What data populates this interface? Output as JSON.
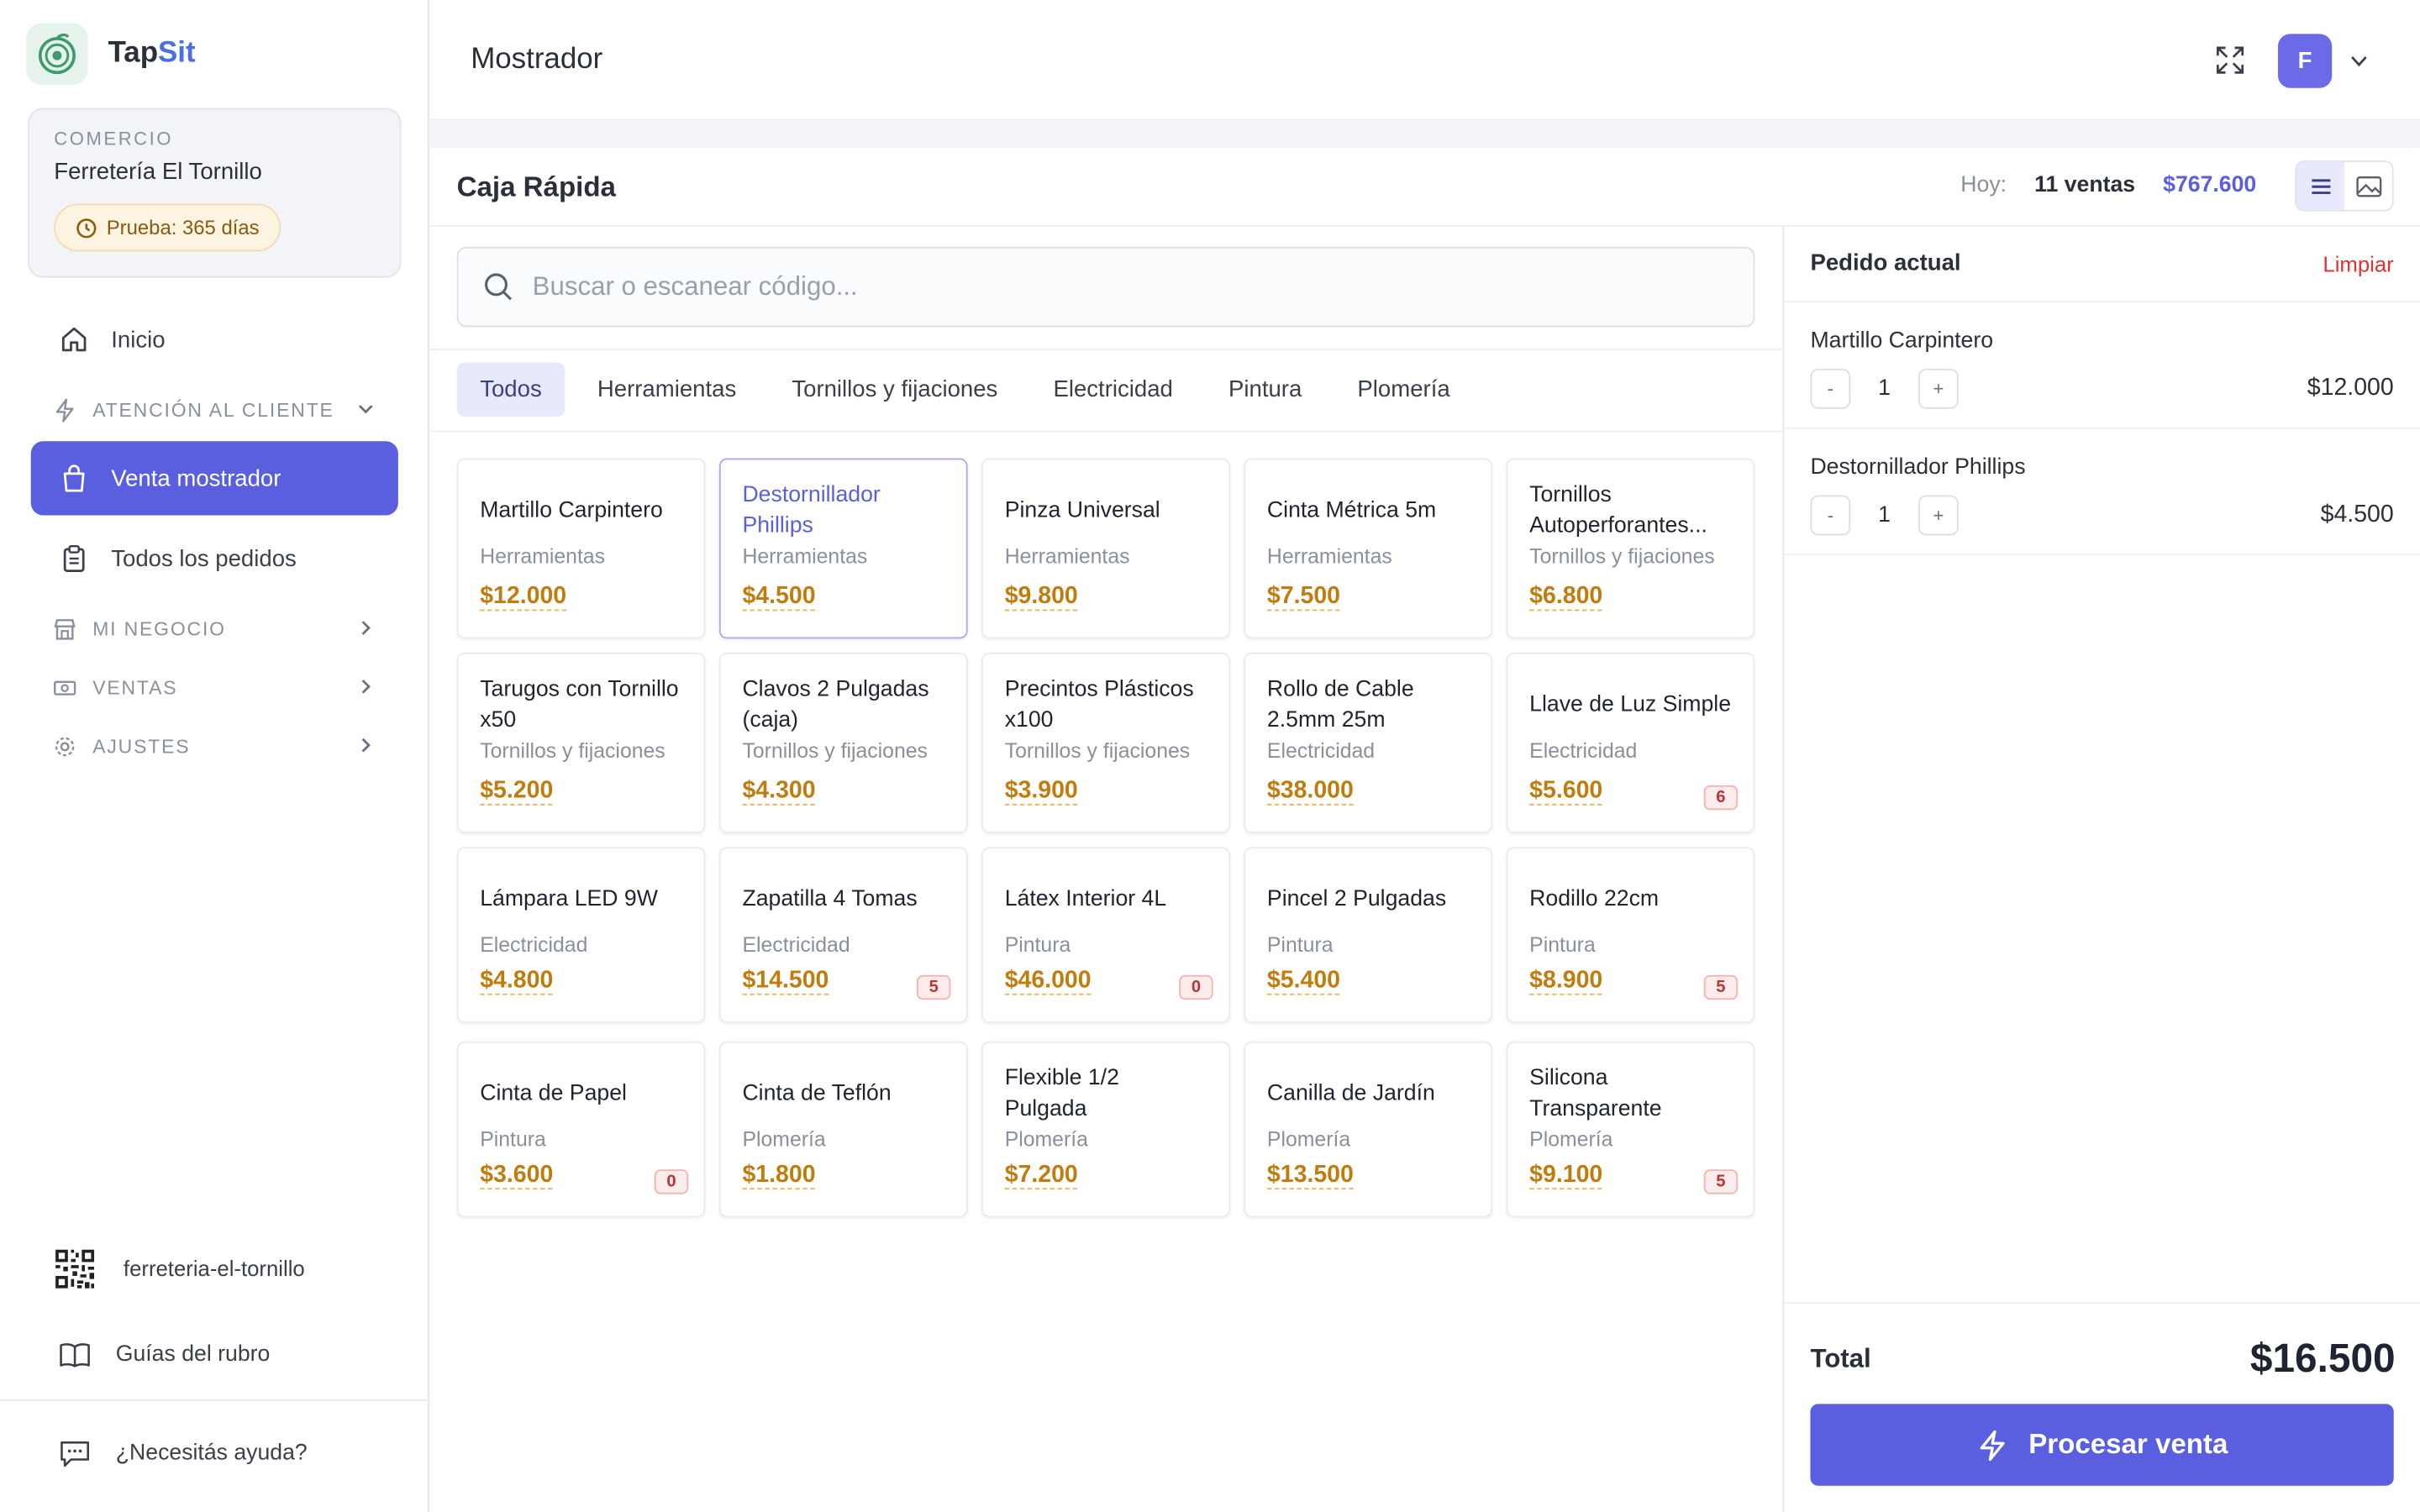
{
  "brand": {
    "name_a": "Tap",
    "name_b": "Sit"
  },
  "shop": {
    "label": "COMERCIO",
    "name": "Ferretería El Tornillo",
    "trial": "Prueba: 365 días"
  },
  "nav": {
    "inicio": "Inicio",
    "atencion": "ATENCIÓN AL CLIENTE",
    "venta": "Venta mostrador",
    "pedidos": "Todos los pedidos",
    "negocio": "MI NEGOCIO",
    "ventas": "VENTAS",
    "ajustes": "AJUSTES"
  },
  "sidebar_bottom": {
    "slug": "ferreteria-el-tornillo",
    "guias": "Guías del rubro",
    "ayuda": "¿Necesitás ayuda?"
  },
  "header": {
    "title": "Mostrador",
    "avatar": "F"
  },
  "panel": {
    "title": "Caja Rápida",
    "today_label": "Hoy:",
    "today_count": "11 ventas",
    "today_amount": "$767.600",
    "search_placeholder": "Buscar o escanear código..."
  },
  "tabs": [
    "Todos",
    "Herramientas",
    "Tornillos y fijaciones",
    "Electricidad",
    "Pintura",
    "Plomería"
  ],
  "products": [
    {
      "name": "Martillo Carpintero",
      "category": "Herramientas",
      "price": "$12.000",
      "stock": ""
    },
    {
      "name": "Destornillador Phillips",
      "category": "Herramientas",
      "price": "$4.500",
      "stock": ""
    },
    {
      "name": "Pinza Universal",
      "category": "Herramientas",
      "price": "$9.800",
      "stock": ""
    },
    {
      "name": "Cinta Métrica 5m",
      "category": "Herramientas",
      "price": "$7.500",
      "stock": ""
    },
    {
      "name": "Tornillos Autoperforantes...",
      "category": "Tornillos y fijaciones",
      "price": "$6.800",
      "stock": ""
    },
    {
      "name": "Tarugos con Tornillo x50",
      "category": "Tornillos y fijaciones",
      "price": "$5.200",
      "stock": ""
    },
    {
      "name": "Clavos 2 Pulgadas (caja)",
      "category": "Tornillos y fijaciones",
      "price": "$4.300",
      "stock": ""
    },
    {
      "name": "Precintos Plásticos x100",
      "category": "Tornillos y fijaciones",
      "price": "$3.900",
      "stock": ""
    },
    {
      "name": "Rollo de Cable 2.5mm 25m",
      "category": "Electricidad",
      "price": "$38.000",
      "stock": ""
    },
    {
      "name": "Llave de Luz Simple",
      "category": "Electricidad",
      "price": "$5.600",
      "stock": "6"
    },
    {
      "name": "Lámpara LED 9W",
      "category": "Electricidad",
      "price": "$4.800",
      "stock": ""
    },
    {
      "name": "Zapatilla 4 Tomas",
      "category": "Electricidad",
      "price": "$14.500",
      "stock": "5"
    },
    {
      "name": "Látex Interior 4L",
      "category": "Pintura",
      "price": "$46.000",
      "stock": "0"
    },
    {
      "name": "Pincel 2 Pulgadas",
      "category": "Pintura",
      "price": "$5.400",
      "stock": ""
    },
    {
      "name": "Rodillo 22cm",
      "category": "Pintura",
      "price": "$8.900",
      "stock": "5"
    },
    {
      "name": "Cinta de Papel",
      "category": "Pintura",
      "price": "$3.600",
      "stock": "0"
    },
    {
      "name": "Cinta de Teflón",
      "category": "Plomería",
      "price": "$1.800",
      "stock": ""
    },
    {
      "name": "Flexible 1/2 Pulgada",
      "category": "Plomería",
      "price": "$7.200",
      "stock": ""
    },
    {
      "name": "Canilla de Jardín",
      "category": "Plomería",
      "price": "$13.500",
      "stock": ""
    },
    {
      "name": "Silicona Transparente",
      "category": "Plomería",
      "price": "$9.100",
      "stock": "5"
    }
  ],
  "order": {
    "title": "Pedido actual",
    "clear": "Limpiar",
    "lines": [
      {
        "name": "Martillo Carpintero",
        "qty": "1",
        "price": "$12.000"
      },
      {
        "name": "Destornillador Phillips",
        "qty": "1",
        "price": "$4.500"
      }
    ],
    "minus": "-",
    "plus": "+",
    "total_label": "Total",
    "total": "$16.500",
    "process": "Procesar venta"
  },
  "colors": {
    "accent": "#5a5fe0",
    "price": "#c27c0e",
    "danger": "#e03434",
    "brand_green": "#3f9a6b"
  }
}
